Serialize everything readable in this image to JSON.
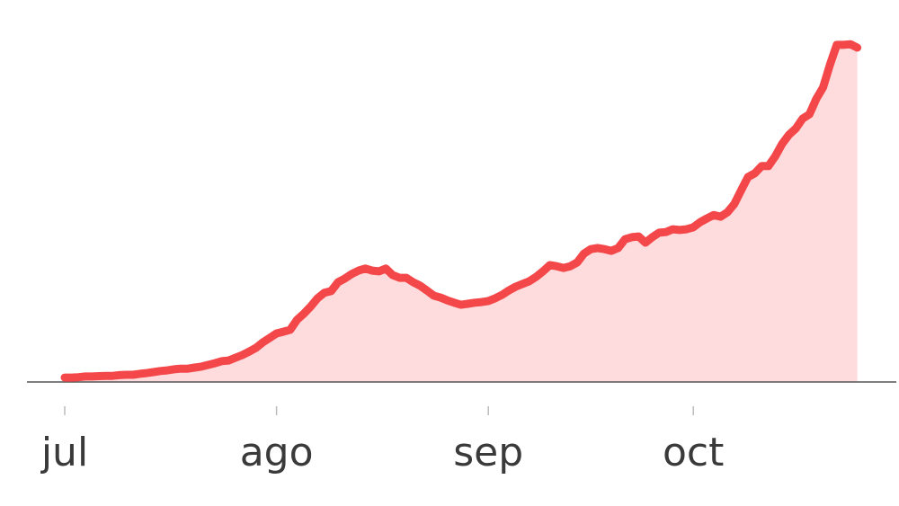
{
  "chart_data": {
    "type": "area",
    "categories": [
      "jul",
      null,
      null,
      null,
      null,
      null,
      null,
      null,
      null,
      null,
      null,
      null,
      null,
      null,
      null,
      null,
      null,
      null,
      null,
      null,
      null,
      null,
      null,
      null,
      null,
      null,
      null,
      null,
      null,
      null,
      null,
      "ago",
      null,
      null,
      null,
      null,
      null,
      null,
      null,
      null,
      null,
      null,
      null,
      null,
      null,
      null,
      null,
      null,
      null,
      null,
      null,
      null,
      null,
      null,
      null,
      null,
      null,
      null,
      null,
      null,
      null,
      null,
      "sep",
      null,
      null,
      null,
      null,
      null,
      null,
      null,
      null,
      null,
      null,
      null,
      null,
      null,
      null,
      null,
      null,
      null,
      null,
      null,
      null,
      null,
      null,
      null,
      null,
      null,
      null,
      null,
      null,
      null,
      "oct",
      null,
      null,
      null,
      null,
      null,
      null,
      null,
      null,
      null,
      null,
      null,
      null,
      null,
      null,
      null,
      null,
      null,
      null,
      null,
      null,
      null,
      null,
      null,
      null
    ],
    "values": [
      1.3,
      1.3,
      1.4,
      1.6,
      1.6,
      1.7,
      1.8,
      1.8,
      2.0,
      2.1,
      2.1,
      2.4,
      2.6,
      2.9,
      3.2,
      3.4,
      3.7,
      3.9,
      3.9,
      4.2,
      4.5,
      5.0,
      5.5,
      6.1,
      6.3,
      7.1,
      7.9,
      8.9,
      10.0,
      11.6,
      12.9,
      14.2,
      14.7,
      15.3,
      18.2,
      20.0,
      22.1,
      24.5,
      26.1,
      26.6,
      29.2,
      30.3,
      31.6,
      32.6,
      33.2,
      32.6,
      32.4,
      33.2,
      31.3,
      30.5,
      30.5,
      29.2,
      28.2,
      26.8,
      25.3,
      24.7,
      23.9,
      23.2,
      22.6,
      22.9,
      23.2,
      23.4,
      23.7,
      24.5,
      25.5,
      26.8,
      27.9,
      28.7,
      29.5,
      30.8,
      32.4,
      34.2,
      33.9,
      33.4,
      33.9,
      35.0,
      37.6,
      38.9,
      39.2,
      38.9,
      38.4,
      39.2,
      41.8,
      42.4,
      42.6,
      40.8,
      42.4,
      43.7,
      43.9,
      44.7,
      44.5,
      44.7,
      45.3,
      46.8,
      47.9,
      48.9,
      48.4,
      49.7,
      52.1,
      56.1,
      60.0,
      61.1,
      63.2,
      63.2,
      66.1,
      69.7,
      72.4,
      74.2,
      77.1,
      78.4,
      82.9,
      86.3,
      92.9,
      98.7,
      98.7,
      98.9,
      97.9
    ],
    "ylim": [
      0,
      100
    ],
    "color": "#f4474a",
    "area_color": "#fedcdd",
    "grid": false
  }
}
